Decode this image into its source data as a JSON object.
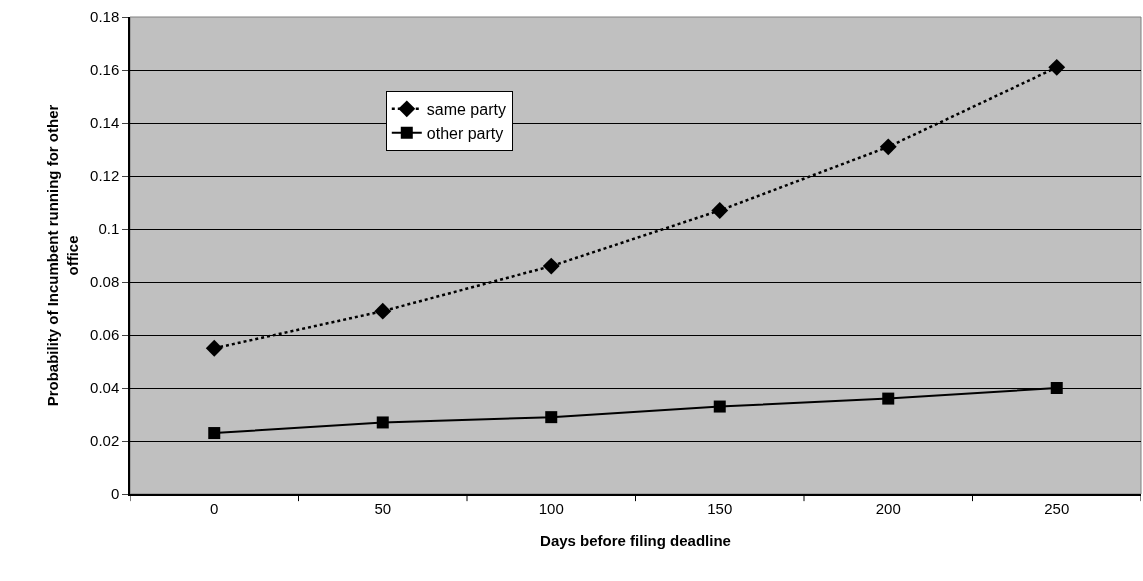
{
  "chart_data": {
    "type": "line",
    "xlabel": "Days before filing deadline",
    "ylabel": "Probability of Incumbent running for other office",
    "categories": [
      "0",
      "50",
      "100",
      "150",
      "200",
      "250"
    ],
    "series": [
      {
        "name": "same party",
        "color": "#000000",
        "values": [
          0.055,
          0.069,
          0.086,
          0.107,
          0.131,
          0.161
        ],
        "marker": "diamond",
        "line_style": "dotted"
      },
      {
        "name": "other party",
        "color": "#000000",
        "values": [
          0.023,
          0.027,
          0.029,
          0.033,
          0.036,
          0.04
        ],
        "marker": "square",
        "line_style": "solid"
      }
    ],
    "ylim": [
      0,
      0.18
    ],
    "yticks": [
      0,
      0.02,
      0.04,
      0.06,
      0.08,
      0.1,
      0.12,
      0.14,
      0.16,
      0.18
    ],
    "grid": "y",
    "legend": "top left"
  }
}
